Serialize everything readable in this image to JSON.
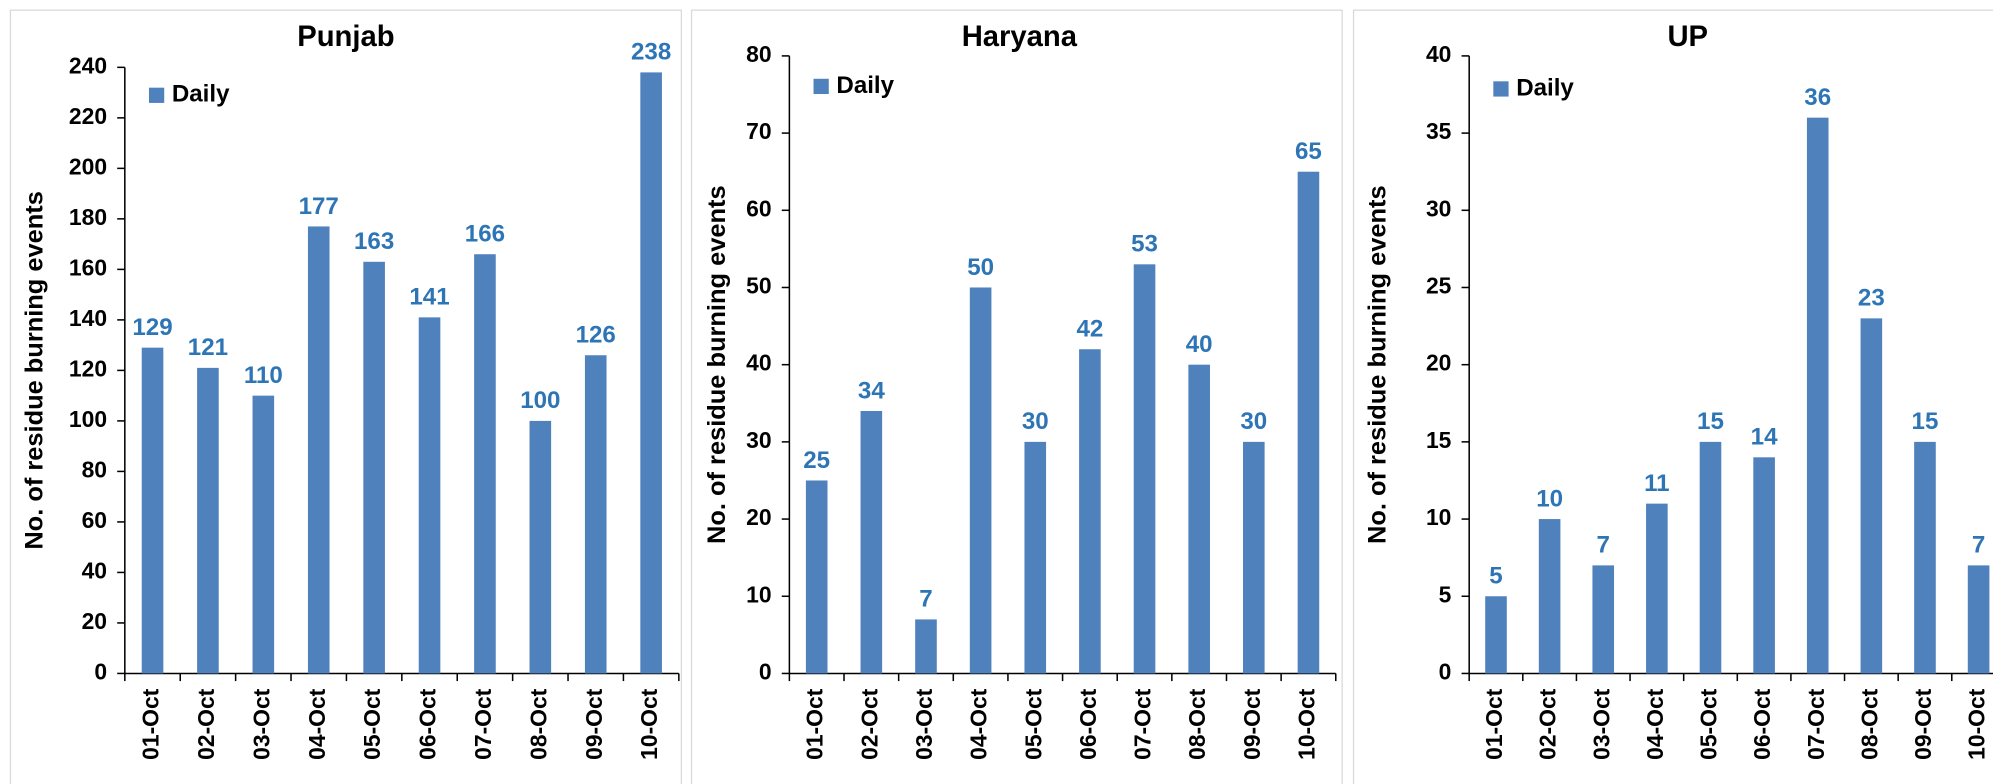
{
  "chart_data": [
    {
      "type": "bar",
      "title": "Punjab",
      "ylabel": "No. of residue burning events",
      "legend": "upper left",
      "categories": [
        "01-Oct",
        "02-Oct",
        "03-Oct",
        "04-Oct",
        "05-Oct",
        "06-Oct",
        "07-Oct",
        "08-Oct",
        "09-Oct",
        "10-Oct"
      ],
      "series": [
        {
          "name": "Daily",
          "color": "#4f81bd",
          "values": [
            129,
            121,
            110,
            177,
            163,
            141,
            166,
            100,
            126,
            238
          ]
        }
      ],
      "ylim": [
        0,
        240
      ],
      "yticks": [
        0,
        20,
        40,
        60,
        80,
        100,
        120,
        140,
        160,
        180,
        200,
        220,
        240
      ]
    },
    {
      "type": "bar",
      "title": "Haryana",
      "ylabel": "No. of residue burning events",
      "legend": "upper left",
      "categories": [
        "01-Oct",
        "02-Oct",
        "03-Oct",
        "04-Oct",
        "05-Oct",
        "06-Oct",
        "07-Oct",
        "08-Oct",
        "09-Oct",
        "10-Oct"
      ],
      "series": [
        {
          "name": "Daily",
          "color": "#4f81bd",
          "values": [
            25,
            34,
            7,
            50,
            30,
            42,
            53,
            40,
            30,
            65
          ]
        }
      ],
      "ylim": [
        0,
        80
      ],
      "yticks": [
        0,
        10,
        20,
        30,
        40,
        50,
        60,
        70,
        80
      ]
    },
    {
      "type": "bar",
      "title": "UP",
      "ylabel": "No. of residue burning events",
      "legend": "upper left",
      "categories": [
        "01-Oct",
        "02-Oct",
        "03-Oct",
        "04-Oct",
        "05-Oct",
        "06-Oct",
        "07-Oct",
        "08-Oct",
        "09-Oct",
        "10-Oct"
      ],
      "series": [
        {
          "name": "Daily",
          "color": "#4f81bd",
          "values": [
            5,
            10,
            7,
            11,
            15,
            14,
            36,
            23,
            15,
            7
          ]
        }
      ],
      "ylim": [
        0,
        40
      ],
      "yticks": [
        0,
        5,
        10,
        15,
        20,
        25,
        30,
        35,
        40
      ]
    }
  ]
}
